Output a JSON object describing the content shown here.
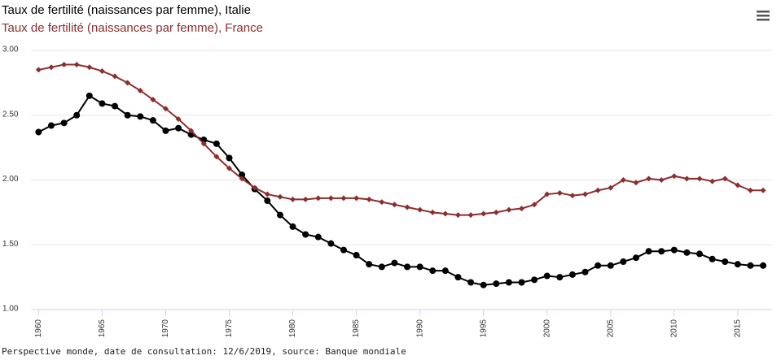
{
  "chart_data": {
    "type": "line",
    "x": [
      1960,
      1961,
      1962,
      1963,
      1964,
      1965,
      1966,
      1967,
      1968,
      1969,
      1970,
      1971,
      1972,
      1973,
      1974,
      1975,
      1976,
      1977,
      1978,
      1979,
      1980,
      1981,
      1982,
      1983,
      1984,
      1985,
      1986,
      1987,
      1988,
      1989,
      1990,
      1991,
      1992,
      1993,
      1994,
      1995,
      1996,
      1997,
      1998,
      1999,
      2000,
      2001,
      2002,
      2003,
      2004,
      2005,
      2006,
      2007,
      2008,
      2009,
      2010,
      2011,
      2012,
      2013,
      2014,
      2015,
      2016,
      2017
    ],
    "series": [
      {
        "name": "Taux de fertilité (naissances par femme), Italie",
        "color": "#000000",
        "marker": "circle",
        "values": [
          2.37,
          2.42,
          2.44,
          2.5,
          2.65,
          2.59,
          2.57,
          2.5,
          2.49,
          2.46,
          2.38,
          2.4,
          2.35,
          2.31,
          2.28,
          2.17,
          2.04,
          1.93,
          1.84,
          1.73,
          1.64,
          1.58,
          1.56,
          1.51,
          1.46,
          1.42,
          1.35,
          1.33,
          1.36,
          1.33,
          1.33,
          1.3,
          1.3,
          1.25,
          1.21,
          1.19,
          1.2,
          1.21,
          1.21,
          1.23,
          1.26,
          1.25,
          1.27,
          1.29,
          1.34,
          1.34,
          1.37,
          1.4,
          1.45,
          1.45,
          1.46,
          1.44,
          1.43,
          1.39,
          1.37,
          1.35,
          1.34,
          1.34
        ]
      },
      {
        "name": "Taux de fertilité (naissances par femme), France",
        "color": "#8b2e2e",
        "marker": "diamond",
        "values": [
          2.85,
          2.87,
          2.89,
          2.89,
          2.87,
          2.84,
          2.8,
          2.75,
          2.69,
          2.62,
          2.55,
          2.47,
          2.38,
          2.28,
          2.18,
          2.09,
          2.01,
          1.94,
          1.89,
          1.87,
          1.85,
          1.85,
          1.86,
          1.86,
          1.86,
          1.86,
          1.85,
          1.83,
          1.81,
          1.79,
          1.77,
          1.75,
          1.74,
          1.73,
          1.73,
          1.74,
          1.75,
          1.77,
          1.78,
          1.81,
          1.89,
          1.9,
          1.88,
          1.89,
          1.92,
          1.94,
          2.0,
          1.98,
          2.01,
          2.0,
          2.03,
          2.01,
          2.01,
          1.99,
          2.01,
          1.96,
          1.92,
          1.92
        ]
      }
    ],
    "xlim": [
      1959.4,
      2017.7
    ],
    "xticks": [
      1960,
      1965,
      1970,
      1975,
      1980,
      1985,
      1990,
      1995,
      2000,
      2005,
      2010,
      2015
    ],
    "ylim": [
      1.0,
      3.0
    ],
    "yticks": [
      {
        "value": 1.0,
        "label": "1.00"
      },
      {
        "value": 1.5,
        "label": "1.50"
      },
      {
        "value": 2.0,
        "label": "2.00"
      },
      {
        "value": 2.5,
        "label": "2.50"
      },
      {
        "value": 3.0,
        "label": "3.00"
      }
    ],
    "grid": true,
    "credit": "Perspective monde, date de consultation: 12/6/2019, source: Banque mondiale"
  }
}
